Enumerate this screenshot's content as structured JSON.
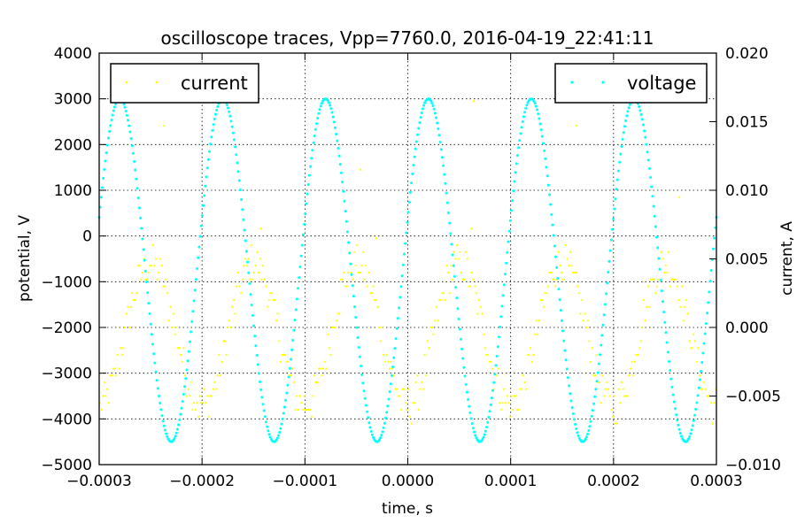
{
  "chart_data": {
    "type": "scatter",
    "title": "oscilloscope traces, Vpp=7760.0, 2016-04-19_22:41:11",
    "xlabel": "time, s",
    "ylabel": "potential, V",
    "y2label": "current, A",
    "xlim": [
      -0.0003,
      0.0003
    ],
    "ylim": [
      -5000,
      4000
    ],
    "y2lim": [
      -0.01,
      0.02
    ],
    "xticks": [
      "−0.0003",
      "−0.0002",
      "−0.0001",
      "0.0000",
      "0.0001",
      "0.0002",
      "0.0003"
    ],
    "yticks": [
      "−5000",
      "−4000",
      "−3000",
      "−2000",
      "−1000",
      "0",
      "1000",
      "2000",
      "3000",
      "4000"
    ],
    "y2ticks": [
      "−0.010",
      "−0.005",
      "0.000",
      "0.005",
      "0.010",
      "0.015",
      "0.020"
    ],
    "grid": true,
    "legend_left": {
      "label": "current",
      "color": "#ffff00",
      "placement": "top-left"
    },
    "legend_right": {
      "label": "voltage",
      "color": "#00ffff",
      "placement": "top-right"
    },
    "series": [
      {
        "name": "voltage",
        "axis": "left",
        "color": "#00ffff",
        "model": {
          "kind": "sine",
          "amplitude": 3750,
          "offset": -750,
          "period": 0.0001,
          "peak_at": -0.00028,
          "points": 600
        }
      },
      {
        "name": "current",
        "axis": "right",
        "color": "#ffff00",
        "model": {
          "kind": "sine",
          "amplitude": 0.0052,
          "offset": -0.0005,
          "period": 0.0001,
          "peak_at": -0.00025,
          "points": 420,
          "spread": 0.0013
        },
        "outliers": [
          {
            "x": -0.000237,
            "y": 0.0147
          },
          {
            "x": -4.6e-05,
            "y": 0.0115
          },
          {
            "x": 6.4e-05,
            "y": 0.0165
          },
          {
            "x": 0.000164,
            "y": 0.0147
          },
          {
            "x": 0.000264,
            "y": 0.0095
          },
          {
            "x": -0.000143,
            "y": 0.0072
          },
          {
            "x": -3.1e-05,
            "y": 0.0065
          },
          {
            "x": 6.2e-05,
            "y": 0.0072
          }
        ]
      }
    ]
  }
}
